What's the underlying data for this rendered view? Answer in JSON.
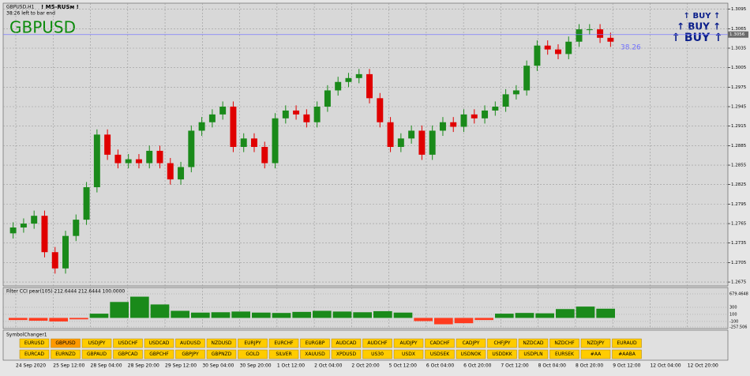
{
  "window": {
    "symbol_period": "GBPUSD,H1",
    "indicator": "! M5-RUSм !",
    "timer": "38:26 left to bar end",
    "symbol": "GBPUSD",
    "spread_label": "38.26",
    "signals": [
      "↑ BUY ↑",
      "↑ BUY ↑",
      "↑ BUY ↑"
    ]
  },
  "chart_data": {
    "type": "candlestick",
    "up_color": "#1a8a1a",
    "down_color": "#e00000",
    "grid": true,
    "open": [
      1.275,
      1.2759,
      1.2765,
      1.2777,
      1.2721,
      1.2696,
      1.2746,
      1.2771,
      1.2821,
      1.2902,
      1.2871,
      1.2858,
      1.2864,
      1.2858,
      1.2877,
      1.2858,
      1.2833,
      1.2852,
      1.2908,
      1.2921,
      1.2933,
      1.2945,
      1.2883,
      1.2896,
      1.2883,
      1.2858,
      1.2927,
      1.2939,
      1.2933,
      1.2921,
      1.2945,
      1.297,
      1.2983,
      1.2989,
      1.2995,
      1.2958,
      1.2921,
      1.2883,
      1.2896,
      1.2908,
      1.2871,
      1.2908,
      1.2921,
      1.2914,
      1.2933,
      1.2927,
      1.2939,
      1.2945,
      1.2964,
      1.297,
      1.3008,
      1.3039,
      1.3033,
      1.3026,
      1.3045,
      1.3064,
      1.3064,
      1.3051
    ],
    "high": [
      1.2767,
      1.2773,
      1.2785,
      1.2785,
      1.2729,
      1.2754,
      1.2779,
      1.2829,
      1.291,
      1.291,
      1.2879,
      1.2872,
      1.2872,
      1.2885,
      1.2885,
      1.2866,
      1.286,
      1.2916,
      1.2929,
      1.2941,
      1.2953,
      1.2953,
      1.2904,
      1.2904,
      1.2891,
      1.2935,
      1.2947,
      1.2947,
      1.2941,
      1.2953,
      1.2978,
      1.2991,
      1.2997,
      1.3003,
      1.3003,
      1.2966,
      1.2929,
      1.2904,
      1.2916,
      1.2916,
      1.2916,
      1.2929,
      1.2929,
      1.2941,
      1.2941,
      1.2947,
      1.2953,
      1.2972,
      1.2978,
      1.3016,
      1.3047,
      1.3047,
      1.3041,
      1.3053,
      1.3072,
      1.3072,
      1.3072,
      1.3059
    ],
    "low": [
      1.2742,
      1.2751,
      1.2757,
      1.2713,
      1.2688,
      1.2688,
      1.2738,
      1.2763,
      1.2813,
      1.2863,
      1.285,
      1.285,
      1.285,
      1.285,
      1.285,
      1.2825,
      1.2825,
      1.2844,
      1.29,
      1.2913,
      1.2925,
      1.2875,
      1.2875,
      1.2875,
      1.285,
      1.285,
      1.2919,
      1.2925,
      1.2913,
      1.2913,
      1.2937,
      1.2962,
      1.2975,
      1.2981,
      1.295,
      1.2913,
      1.2875,
      1.2875,
      1.2888,
      1.2863,
      1.2863,
      1.29,
      1.2906,
      1.2906,
      1.2919,
      1.2919,
      1.2931,
      1.2937,
      1.2956,
      1.2962,
      1.3,
      1.3025,
      1.3018,
      1.3018,
      1.3037,
      1.3056,
      1.3043,
      1.3037
    ],
    "close": [
      1.2759,
      1.2765,
      1.2777,
      1.2721,
      1.2696,
      1.2746,
      1.2771,
      1.2821,
      1.2902,
      1.2871,
      1.2858,
      1.2864,
      1.2858,
      1.2877,
      1.2858,
      1.2833,
      1.2852,
      1.2908,
      1.2921,
      1.2933,
      1.2945,
      1.2883,
      1.2896,
      1.2883,
      1.2858,
      1.2927,
      1.2939,
      1.2933,
      1.2921,
      1.2945,
      1.297,
      1.2983,
      1.2989,
      1.2995,
      1.2958,
      1.2921,
      1.2883,
      1.2896,
      1.2908,
      1.2871,
      1.2908,
      1.2921,
      1.2914,
      1.2933,
      1.2927,
      1.2939,
      1.2945,
      1.2964,
      1.297,
      1.3008,
      1.3039,
      1.3033,
      1.3026,
      1.3045,
      1.3064,
      1.3064,
      1.3051,
      1.3045
    ],
    "current_price": 1.3056,
    "ylim": [
      1.2669,
      1.3097
    ],
    "yticks": [
      1.2675,
      1.2705,
      1.2735,
      1.2765,
      1.2795,
      1.2825,
      1.2855,
      1.2885,
      1.2915,
      1.2945,
      1.2975,
      1.3005,
      1.3035,
      1.3065,
      1.3095
    ],
    "x_labels": [
      "24 Sep 2020",
      "25 Sep 12:00",
      "28 Sep 04:00",
      "28 Sep 20:00",
      "29 Sep 12:00",
      "30 Sep 04:00",
      "30 Sep 20:00",
      "1 Oct 12:00",
      "2 Oct 04:00",
      "2 Oct 20:00",
      "5 Oct 12:00",
      "6 Oct 04:00",
      "6 Oct 20:00",
      "7 Oct 12:00",
      "8 Oct 04:00",
      "8 Oct 20:00",
      "9 Oct 12:00",
      "12 Oct 04:00",
      "12 Oct 20:00"
    ]
  },
  "cci": {
    "title": "Filter CCI pear(105) 212.6444 212.6444 100.0000",
    "up_color": "#1a8a1a",
    "down_color": "#ff3b1f",
    "values": [
      -60,
      -80,
      -100,
      -40,
      120,
      450,
      600,
      380,
      200,
      150,
      160,
      180,
      150,
      140,
      170,
      200,
      180,
      160,
      190,
      150,
      -90,
      -180,
      -150,
      -60,
      120,
      140,
      130,
      250,
      320,
      260
    ],
    "ylim": [
      -257.506,
      679.4648
    ],
    "yticks": [
      -257.506,
      -100,
      100,
      300,
      679.4648
    ]
  },
  "symbol_changer": {
    "title": "SymbolChanger1",
    "active": "GBPUSD",
    "rows": [
      [
        "EURUSD",
        "GBPUSD",
        "USDJPY",
        "USDCHF",
        "USDCAD",
        "AUDUSD",
        "NZDUSD",
        "EURJPY",
        "EURCHF",
        "EURGBP",
        "AUDCAD",
        "AUDCHF",
        "AUDJPY",
        "CADCHF",
        "CADJPY",
        "CHFJPY",
        "NZDCAD",
        "NZDCHF",
        "NZDJPY",
        "EURAUD"
      ],
      [
        "EURCAD",
        "EURNZD",
        "GBPAUD",
        "GBPCAD",
        "GBPCHF",
        "GBPJPY",
        "GBPNZD",
        "GOLD",
        "SILVER",
        "XAUUSD",
        "XPDUSD",
        "US30",
        "USDX",
        "USDSEK",
        "USDNOK",
        "USDDKK",
        "USDPLN",
        "EURSEK",
        "#AA",
        "#AABA"
      ]
    ]
  }
}
